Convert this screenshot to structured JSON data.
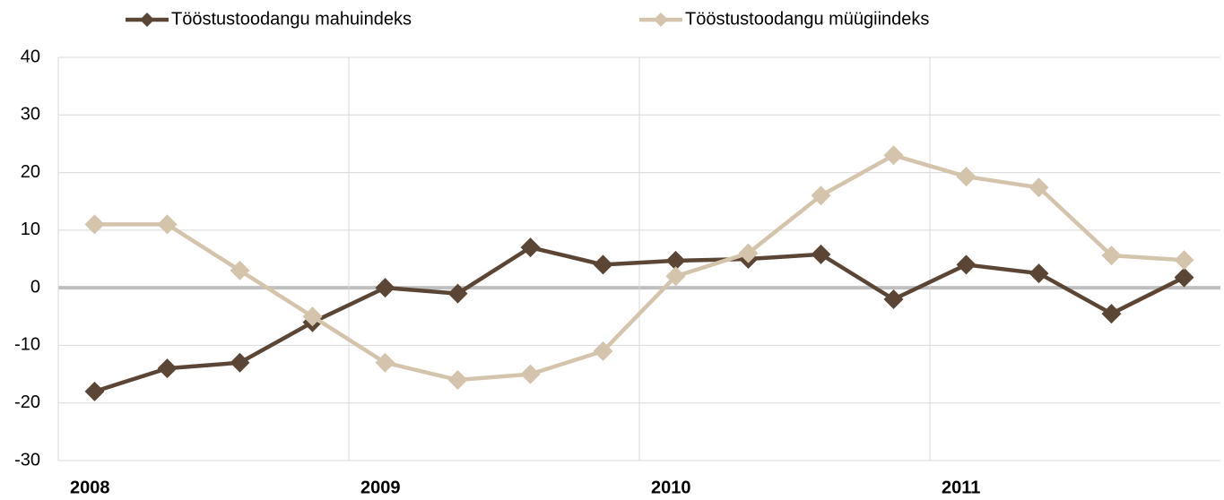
{
  "chart_data": {
    "type": "line",
    "categories": [
      "2008",
      null,
      null,
      null,
      "2009",
      null,
      null,
      null,
      "2010",
      null,
      null,
      null,
      "2011",
      null,
      null,
      null
    ],
    "series": [
      {
        "name": "Tööstustoodangu mahuindeks",
        "color": "#5b4636",
        "values": [
          -18,
          -14,
          -13,
          -6,
          0,
          -1,
          7,
          4,
          4.7,
          5,
          5.8,
          -2,
          4,
          2.5,
          -4.5,
          1.8
        ]
      },
      {
        "name": "Tööstustoodangu müügiindeks",
        "color": "#d5c4ac",
        "values": [
          11,
          11,
          3,
          -5,
          -13,
          -16,
          -15,
          -11,
          2,
          6,
          16,
          23,
          19.3,
          17.4,
          5.6,
          4.8
        ]
      }
    ],
    "ylim": [
      -30,
      40
    ],
    "yticks": [
      -30,
      -20,
      -10,
      0,
      10,
      20,
      30,
      40
    ],
    "grid": true,
    "legend": "top"
  }
}
